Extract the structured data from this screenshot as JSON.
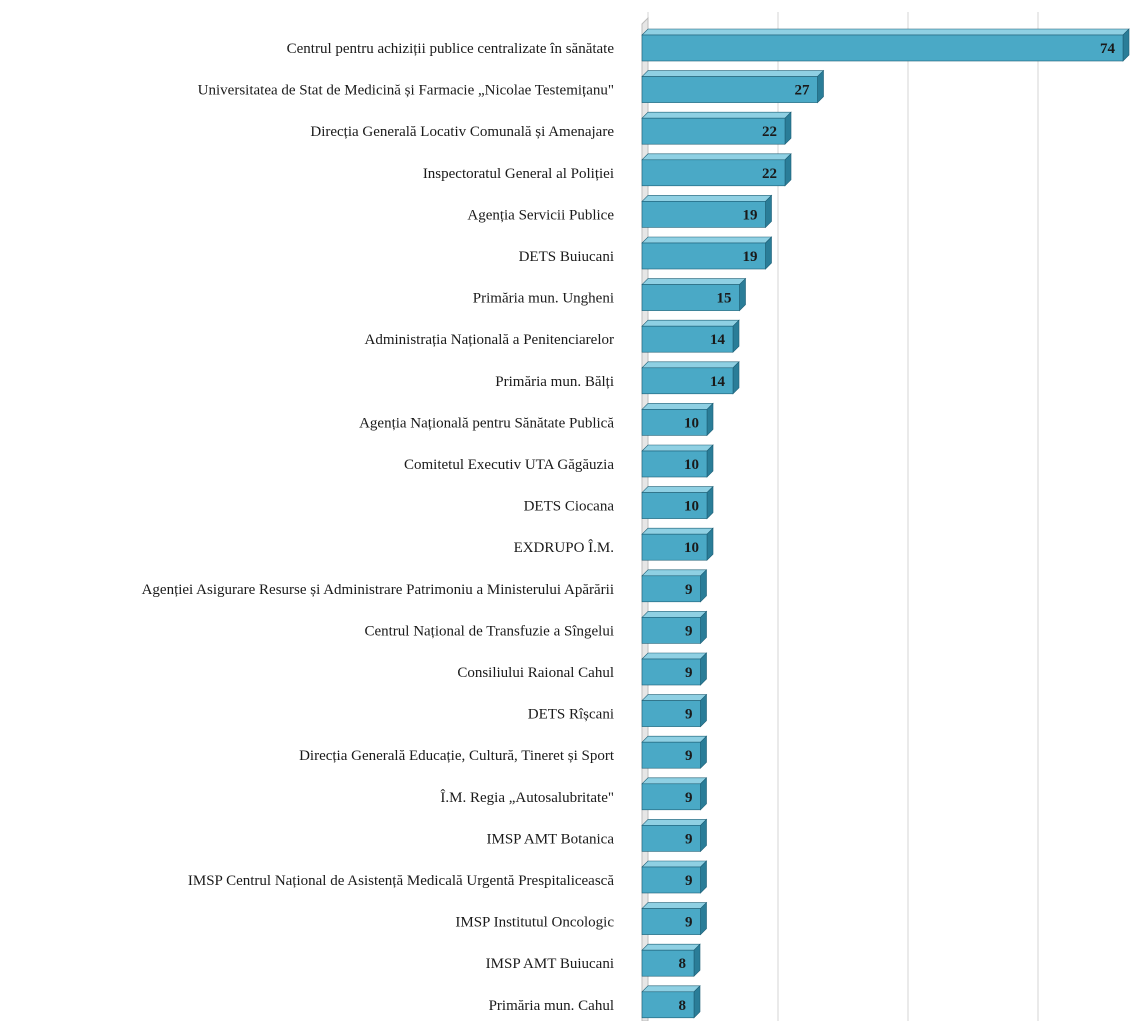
{
  "chart_data": {
    "type": "bar",
    "orientation": "horizontal",
    "categories": [
      "Centrul pentru achiziții publice centralizate în sănătate",
      "Universitatea de Stat de Medicină și Farmacie „Nicolae Testemițanu\"",
      "Direcția Generală Locativ Comunală și Amenajare",
      "Inspectoratul General al Poliției",
      "Agenția Servicii Publice",
      "DETS Buiucani",
      "Primăria mun. Ungheni",
      "Administrația Națională a Penitenciarelor",
      "Primăria mun. Bălți",
      "Agenția Națională pentru Sănătate Publică",
      "Comitetul Executiv UTA Găgăuzia",
      "DETS Ciocana",
      "EXDRUPO Î.M.",
      "Agenției Asigurare Resurse și Administrare Patrimoniu a Ministerului Apărării",
      "Centrul Național de Transfuzie a Sîngelui",
      "Consiliului Raional Cahul",
      "DETS Rîșcani",
      "Direcția Generală Educație, Cultură, Tineret și Sport",
      "Î.M. Regia „Autosalubritate\"",
      "IMSP AMT Botanica",
      "IMSP Centrul Național de Asistență Medicală Urgentă Prespitalicească",
      "IMSP Institutul Oncologic",
      "IMSP AMT Buiucani",
      "Primăria mun. Cahul"
    ],
    "values": [
      74,
      27,
      22,
      22,
      19,
      19,
      15,
      14,
      14,
      10,
      10,
      10,
      10,
      9,
      9,
      9,
      9,
      9,
      9,
      9,
      9,
      9,
      8,
      8
    ],
    "xlim": [
      0,
      80
    ],
    "grid": true,
    "legend": "none",
    "colors": {
      "bar_front": "#4aa9c6",
      "bar_top": "#8fd0e3",
      "bar_side": "#2a7d98",
      "bar_edge": "#1d5f76",
      "grid": "#d4d4d4",
      "wall": "#bdbdbd"
    }
  }
}
